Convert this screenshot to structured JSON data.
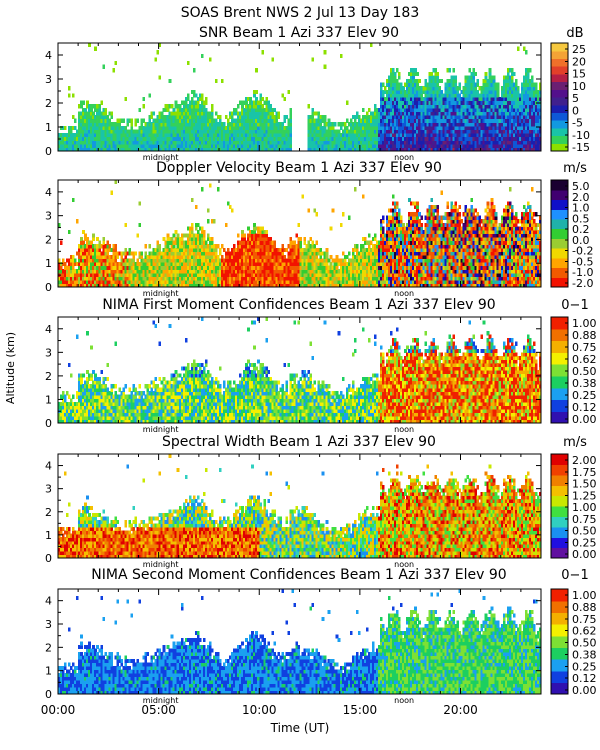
{
  "figure": {
    "title_line1": "SOAS Brent NWS    2 Jul 13 Day 183",
    "ylabel": "Altitude (km)",
    "xlabel": "Time (UT)",
    "x_tick_labels": [
      "00:00",
      "05:00",
      "10:00",
      "15:00",
      "20:00"
    ],
    "marker_midnight": "midnight",
    "marker_noon": "noon"
  },
  "colors": {
    "snr": [
      "#8ce000",
      "#33d15b",
      "#19c4a8",
      "#1299e0",
      "#0e58d8",
      "#1b1eae",
      "#40208e",
      "#53108c",
      "#6a1f72",
      "#b51f45",
      "#e2402a",
      "#f0702a",
      "#f4a336",
      "#f6c83f"
    ],
    "doppler": [
      "#f21200",
      "#f25a00",
      "#ffa500",
      "#f0d800",
      "#9acd32",
      "#32cd32",
      "#20b2aa",
      "#1e90ff",
      "#1010c8",
      "#400070",
      "#1a0030"
    ],
    "conf": [
      "#3010b0",
      "#1040e0",
      "#1aa0f0",
      "#1ccf60",
      "#7de034",
      "#f4f000",
      "#f4b000",
      "#f07000",
      "#f02000"
    ],
    "width": [
      "#6010a0",
      "#2010e0",
      "#1a90f0",
      "#30d0c0",
      "#40e040",
      "#c8e800",
      "#f4c000",
      "#f08000",
      "#f04000",
      "#e00000"
    ]
  },
  "chart_data": [
    {
      "type": "heatmap",
      "title": "SNR Beam 1 Azi 337 Elev 90",
      "unit": "dB",
      "palette": "snr",
      "colorbar_ticks": [
        "25",
        "20",
        "15",
        "10",
        "5",
        "0",
        "-5",
        "-10",
        "-15"
      ],
      "x_range_hours": [
        0,
        24
      ],
      "ylim_km": [
        0,
        4.5
      ],
      "y_ticks": [
        0,
        1,
        2,
        3,
        4
      ]
    },
    {
      "type": "heatmap",
      "title": "Doppler Velocity Beam 1 Azi 337 Elev 90",
      "unit": "m/s",
      "palette": "doppler",
      "colorbar_ticks": [
        "5.0",
        "2.0",
        "1.0",
        "0.5",
        "0.2",
        "0.0",
        "-0.2",
        "-0.5",
        "-1.0",
        "-2.0"
      ],
      "x_range_hours": [
        0,
        24
      ],
      "ylim_km": [
        0,
        4.5
      ],
      "y_ticks": [
        0,
        1,
        2,
        3,
        4
      ]
    },
    {
      "type": "heatmap",
      "title": "NIMA First Moment Confidences Beam 1 Azi 337 Elev 90",
      "unit": "0−1",
      "palette": "conf",
      "colorbar_ticks": [
        "1.00",
        "0.88",
        "0.75",
        "0.62",
        "0.50",
        "0.38",
        "0.25",
        "0.12",
        "0.00"
      ],
      "x_range_hours": [
        0,
        24
      ],
      "ylim_km": [
        0,
        4.5
      ],
      "y_ticks": [
        0,
        1,
        2,
        3,
        4
      ]
    },
    {
      "type": "heatmap",
      "title": "Spectral Width Beam 1 Azi 337 Elev 90",
      "unit": "m/s",
      "palette": "width",
      "colorbar_ticks": [
        "2.00",
        "1.75",
        "1.50",
        "1.25",
        "1.00",
        "0.75",
        "0.50",
        "0.25",
        "0.00"
      ],
      "x_range_hours": [
        0,
        24
      ],
      "ylim_km": [
        0,
        4.5
      ],
      "y_ticks": [
        0,
        1,
        2,
        3,
        4
      ]
    },
    {
      "type": "heatmap",
      "title": "NIMA Second Moment Confidences Beam 1 Azi 337 Elev 90",
      "unit": "0−1",
      "palette": "conf",
      "colorbar_ticks": [
        "1.00",
        "0.88",
        "0.75",
        "0.62",
        "0.50",
        "0.38",
        "0.25",
        "0.12",
        "0.00"
      ],
      "x_range_hours": [
        0,
        24
      ],
      "ylim_km": [
        0,
        4.5
      ],
      "y_ticks": [
        0,
        1,
        2,
        3,
        4
      ]
    }
  ]
}
